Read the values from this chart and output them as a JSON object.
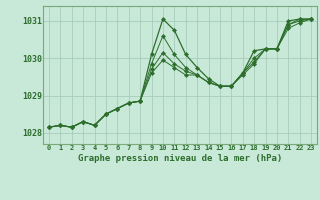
{
  "title": "Graphe pression niveau de la mer (hPa)",
  "x_labels": [
    "0",
    "1",
    "2",
    "3",
    "4",
    "5",
    "6",
    "7",
    "8",
    "9",
    "10",
    "11",
    "12",
    "13",
    "14",
    "15",
    "16",
    "17",
    "18",
    "19",
    "20",
    "21",
    "22",
    "23"
  ],
  "xlim": [
    -0.5,
    23.5
  ],
  "ylim": [
    1027.7,
    1031.4
  ],
  "yticks": [
    1028,
    1029,
    1030,
    1031
  ],
  "background_color": "#c8e8d8",
  "grid_color": "#a0c8b8",
  "line_color": "#2d6e2d",
  "marker_color": "#2d6e2d",
  "title_color": "#2d6e2d",
  "border_color": "#7aaa7a",
  "series": [
    [
      1028.15,
      1028.2,
      1028.15,
      1028.3,
      1028.2,
      1028.5,
      1028.65,
      1028.8,
      1028.85,
      1030.1,
      1031.05,
      1030.75,
      1030.1,
      1029.75,
      1029.45,
      1029.25,
      1029.25,
      1029.6,
      1030.2,
      1030.25,
      1030.25,
      1031.0,
      1031.05,
      1031.05
    ],
    [
      1028.15,
      1028.2,
      1028.15,
      1028.3,
      1028.2,
      1028.5,
      1028.65,
      1028.8,
      1028.85,
      1029.85,
      1030.6,
      1030.1,
      1029.75,
      1029.55,
      1029.35,
      1029.25,
      1029.25,
      1029.6,
      1030.0,
      1030.25,
      1030.25,
      1030.9,
      1031.05,
      1031.05
    ],
    [
      1028.15,
      1028.2,
      1028.15,
      1028.3,
      1028.2,
      1028.5,
      1028.65,
      1028.8,
      1028.85,
      1029.7,
      1030.15,
      1029.85,
      1029.65,
      1029.55,
      1029.35,
      1029.25,
      1029.25,
      1029.6,
      1029.9,
      1030.25,
      1030.25,
      1030.9,
      1031.0,
      1031.05
    ],
    [
      1028.15,
      1028.2,
      1028.15,
      1028.3,
      1028.2,
      1028.5,
      1028.65,
      1028.8,
      1028.85,
      1029.6,
      1029.95,
      1029.75,
      1029.55,
      1029.55,
      1029.35,
      1029.25,
      1029.25,
      1029.55,
      1029.85,
      1030.25,
      1030.25,
      1030.8,
      1030.95,
      1031.05
    ]
  ],
  "figsize": [
    3.2,
    2.0
  ],
  "dpi": 100
}
